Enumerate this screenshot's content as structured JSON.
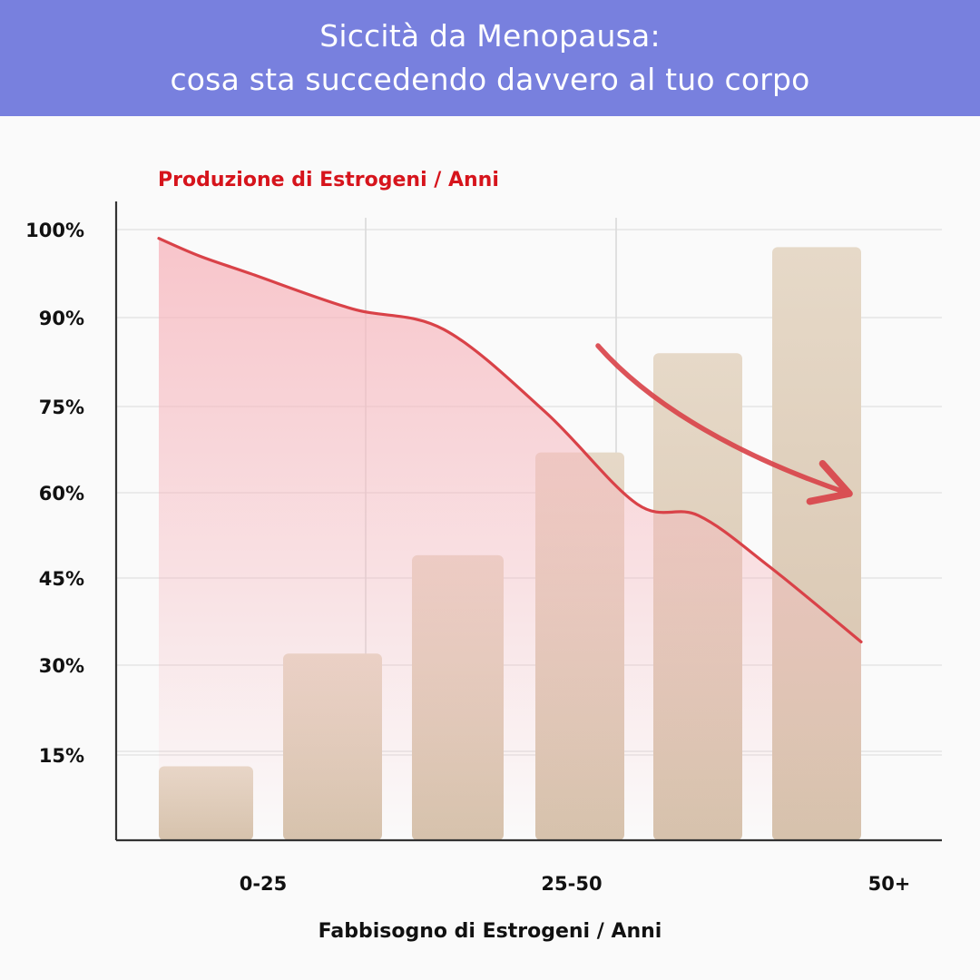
{
  "header": {
    "title_line1": "Siccità da Menopausa:",
    "title_line2": "cosa sta succedendo davvero al tuo corpo"
  },
  "colors": {
    "header_bg": "#7880de",
    "header_text": "#ffffff",
    "bar_top": "#e6d9c8",
    "bar_bottom": "#d6c2ac",
    "curve": "#d94248",
    "fill_top": "#f7b6bd",
    "title_red": "#d6141c"
  },
  "chart_data": {
    "type": "bar",
    "overlay_title": "Produzione di Estrogeni / Anni",
    "xlabel": "Fabbisogno di Estrogeni / Anni",
    "ylabel": "",
    "ytick_labels": [
      "100%",
      "90%",
      "75%",
      "60%",
      "45%",
      "30%",
      "15%"
    ],
    "ytick_values": [
      100,
      90,
      75,
      60,
      45,
      30,
      15
    ],
    "xtick_labels": [
      "0-25",
      "25-50",
      "50+"
    ],
    "grid": true,
    "series": [
      {
        "type": "bar",
        "values": [
          13,
          32,
          49,
          67,
          84,
          98
        ]
      },
      {
        "type": "area",
        "x": [
          0,
          0.2,
          0.45,
          0.95,
          1.4,
          1.9,
          2.35,
          2.65,
          3.0,
          3.45
        ],
        "values": [
          99,
          97,
          95,
          91,
          88,
          74,
          58,
          56,
          47,
          34
        ]
      }
    ],
    "annotations": [
      {
        "type": "arrow",
        "direction": "down-right"
      }
    ]
  }
}
